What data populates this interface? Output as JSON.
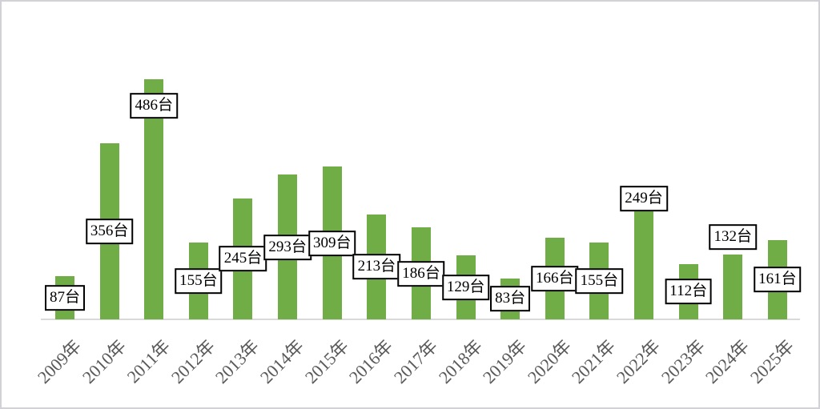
{
  "chart_data": {
    "type": "bar",
    "title": "",
    "xlabel": "",
    "ylabel": "",
    "unit_suffix": "台",
    "categories": [
      "2009年",
      "2010年",
      "2011年",
      "2012年",
      "2013年",
      "2014年",
      "2015年",
      "2016年",
      "2017年",
      "2018年",
      "2019年",
      "2020年",
      "2021年",
      "2022年",
      "2023年",
      "2024年",
      "2025年"
    ],
    "values": [
      87,
      356,
      486,
      155,
      245,
      293,
      309,
      213,
      186,
      129,
      83,
      166,
      155,
      249,
      112,
      132,
      161
    ],
    "data_labels": [
      "87台",
      "356台",
      "486台",
      "155台",
      "245台",
      "293台",
      "309台",
      "213台",
      "186台",
      "129台",
      "83台",
      "166台",
      "155台",
      "249台",
      "112台",
      "132台",
      "161台"
    ],
    "label_positions": [
      "center",
      "center",
      "inside_top",
      "center",
      "center",
      "center",
      "center",
      "center",
      "center",
      "center",
      "center",
      "center",
      "center",
      "top_edge",
      "center",
      "above",
      "center"
    ],
    "ylim": [
      0,
      500
    ],
    "grid": false,
    "legend": "none",
    "colors": {
      "bar": "#70AD47",
      "axis_line": "#d9d9d9",
      "tick_label": "#595959",
      "label_border": "#000000",
      "label_background": "#ffffff",
      "label_text": "#000000"
    }
  }
}
